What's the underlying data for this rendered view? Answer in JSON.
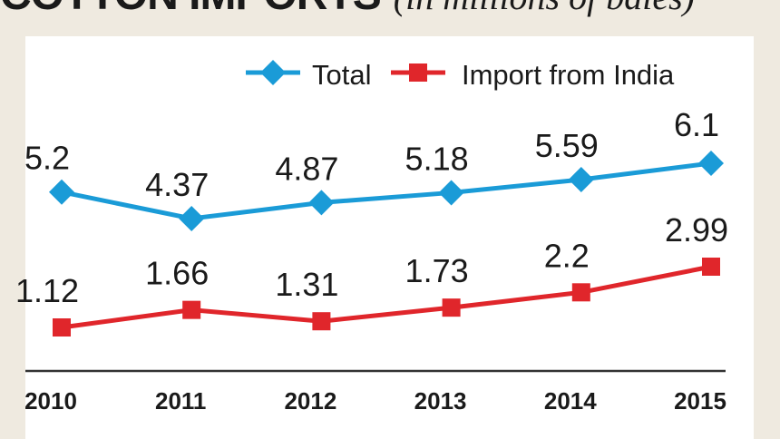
{
  "title": {
    "main": "COTTON IMPORTS",
    "subtitle": "(in millions of bales)"
  },
  "chart_data": {
    "type": "line",
    "x": [
      "2010",
      "2011",
      "2012",
      "2013",
      "2014",
      "2015"
    ],
    "series": [
      {
        "name": "Total",
        "values": [
          5.2,
          4.37,
          4.87,
          5.18,
          5.59,
          6.1
        ],
        "labels": [
          "5.2",
          "4.37",
          "4.87",
          "5.18",
          "5.59",
          "6.1"
        ],
        "color": "#1a9bd7",
        "marker": "diamond"
      },
      {
        "name": "Import from India",
        "values": [
          1.12,
          1.66,
          1.31,
          1.73,
          2.2,
          2.99
        ],
        "labels": [
          "1.12",
          "1.66",
          "1.31",
          "1.73",
          "2.2",
          "2.99"
        ],
        "color": "#e0262b",
        "marker": "square"
      }
    ],
    "legend_position": "top-center",
    "grid": false
  }
}
